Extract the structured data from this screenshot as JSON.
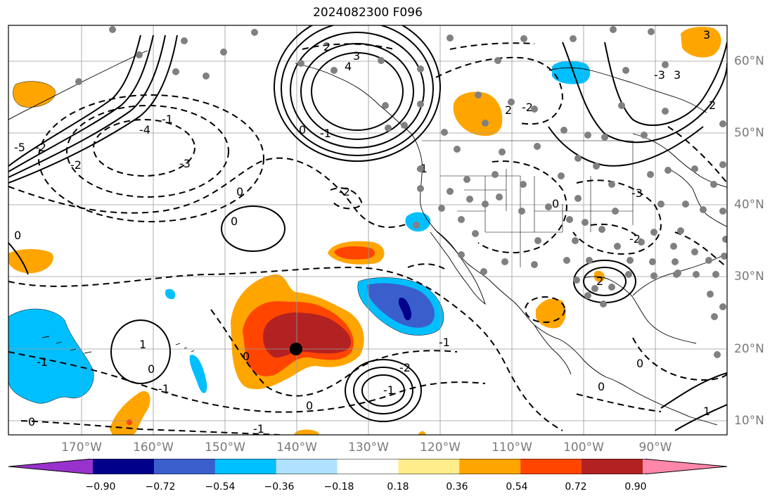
{
  "title": "2024082300 F096",
  "lon_labels": [
    "170°W",
    "160°W",
    "150°W",
    "140°W",
    "130°W",
    "120°W",
    "110°W",
    "100°W",
    "90°W"
  ],
  "lat_labels": [
    "60°N",
    "50°N",
    "40°N",
    "30°N",
    "20°N",
    "10°N"
  ],
  "colorbar": {
    "ticks": [
      "−0.90",
      "−0.72",
      "−0.54",
      "−0.36",
      "−0.18",
      "0.18",
      "0.36",
      "0.54",
      "0.72",
      "0.90"
    ],
    "colors": [
      "#9932cc",
      "#00008b",
      "#3a5fcd",
      "#00bfff",
      "#b0e2ff",
      "#ffffff",
      "#ffec8b",
      "#ffa500",
      "#ff4500",
      "#b22222",
      "#ff88aa"
    ]
  },
  "contour_labels": [
    "2",
    "3",
    "4",
    "0",
    "-1",
    "-2",
    "-3",
    "-4",
    "-5",
    "2",
    "3",
    "-1",
    "1",
    "0",
    "-1",
    "0",
    "-2",
    "-1",
    "-2",
    "-3",
    "-2",
    "-1",
    "0",
    "-2",
    "-2",
    "0",
    "0",
    "-1",
    "-1",
    "0",
    "0",
    "2",
    "3",
    "2",
    "-3",
    "1",
    "0",
    "-1",
    "0",
    "0"
  ],
  "marker": {
    "lon": -140,
    "lat": 20
  }
}
